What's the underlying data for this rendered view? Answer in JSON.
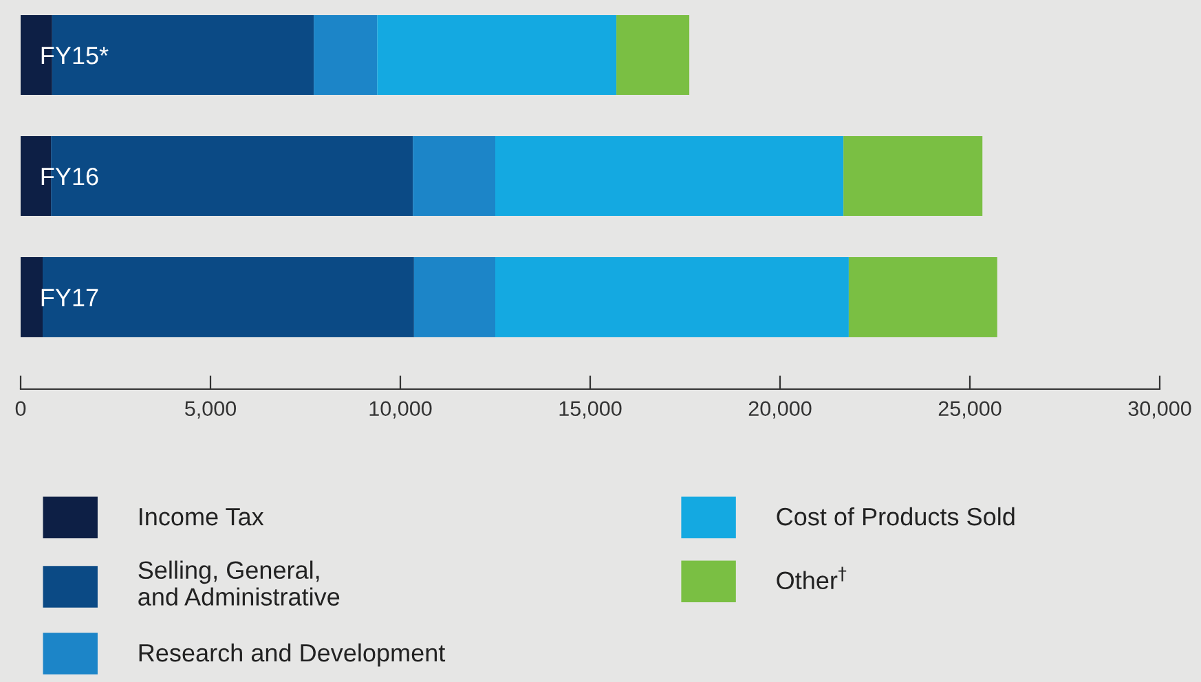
{
  "chart_data": {
    "type": "bar",
    "orientation": "horizontal",
    "stacked": true,
    "categories": [
      "FY15*",
      "FY16",
      "FY17"
    ],
    "series": [
      {
        "name": "Income Tax",
        "color": "#0d1f45",
        "values": [
          830,
          800,
          580
        ]
      },
      {
        "name": "Selling, General,\nand Administrative",
        "color": "#0b4a85",
        "values": [
          6890,
          9530,
          9780
        ]
      },
      {
        "name": "Research and Development",
        "color": "#1c85c8",
        "values": [
          1670,
          2170,
          2140
        ]
      },
      {
        "name": "Cost of Products Sold",
        "color": "#14a9e1",
        "values": [
          6300,
          9170,
          9310
        ]
      },
      {
        "name": "Other$^{†}$",
        "color": "#7abf43",
        "values": [
          1920,
          3660,
          3910
        ]
      }
    ],
    "xlim": [
      0,
      30000
    ],
    "xticks": [
      0,
      {
        "value": 5000,
        "label": "5,000"
      },
      {
        "value": 10000,
        "label": "10,000"
      },
      {
        "value": 15000,
        "label": "15,000"
      },
      {
        "value": 20000,
        "label": "20,000"
      },
      {
        "value": 25000,
        "label": "25,000"
      },
      {
        "value": 30000,
        "label": "30,000"
      }
    ],
    "grid": false,
    "legend": "bottom"
  }
}
